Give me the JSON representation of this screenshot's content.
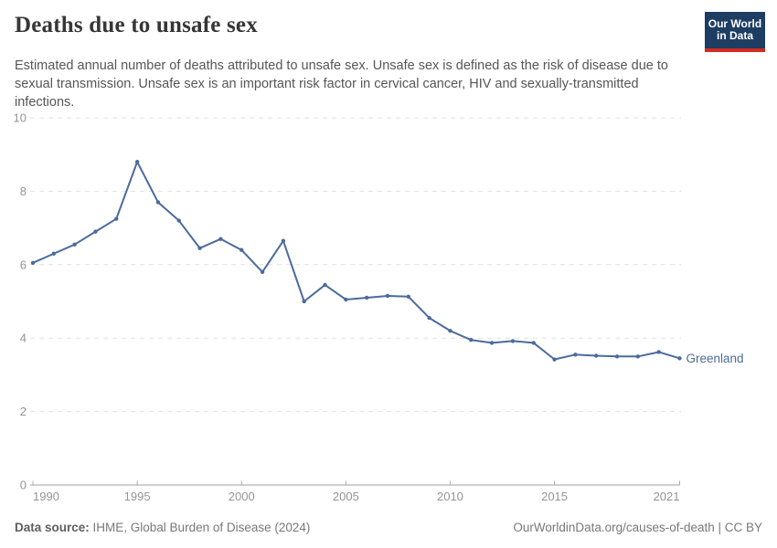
{
  "header": {
    "title": "Deaths due to unsafe sex",
    "subtitle": "Estimated annual number of deaths attributed to unsafe sex. Unsafe sex is defined as the risk of disease due to sexual transmission. Unsafe sex is an important risk factor in cervical cancer, HIV and sexually-transmitted infections.",
    "logo": {
      "line1": "Our World",
      "line2": "in Data",
      "bg": "#1d3d63",
      "accent": "#d42b21"
    }
  },
  "chart_data": {
    "type": "line",
    "title": "Deaths due to unsafe sex",
    "xlabel": "",
    "ylabel": "",
    "xlim": [
      1990,
      2021
    ],
    "ylim": [
      0,
      10
    ],
    "x_ticks": [
      1990,
      1995,
      2000,
      2005,
      2010,
      2015,
      2021
    ],
    "y_ticks": [
      0,
      2,
      4,
      6,
      8,
      10
    ],
    "grid": "horizontal-dashed",
    "legend_position": "end-of-line-label",
    "series": [
      {
        "name": "Greenland",
        "color": "#4c6b9c",
        "x": [
          1990,
          1991,
          1992,
          1993,
          1994,
          1995,
          1996,
          1997,
          1998,
          1999,
          2000,
          2001,
          2002,
          2003,
          2004,
          2005,
          2006,
          2007,
          2008,
          2009,
          2010,
          2011,
          2012,
          2013,
          2014,
          2015,
          2016,
          2017,
          2018,
          2019,
          2020,
          2021
        ],
        "values": [
          6.05,
          6.3,
          6.55,
          6.9,
          7.25,
          8.8,
          7.7,
          7.2,
          6.45,
          6.7,
          6.4,
          5.8,
          6.65,
          5.0,
          5.45,
          5.05,
          5.1,
          5.15,
          5.13,
          4.55,
          4.2,
          3.95,
          3.87,
          3.92,
          3.87,
          3.42,
          3.55,
          3.52,
          3.5,
          3.5,
          3.62,
          3.45
        ]
      }
    ],
    "entity_label": "Greenland",
    "axis_color": "#949494",
    "gridline_color": "#e0e0e0"
  },
  "footer": {
    "source_label": "Data source:",
    "source_text": " IHME, Global Burden of Disease (2024)",
    "rights": "OurWorldinData.org/causes-of-death | CC BY"
  }
}
